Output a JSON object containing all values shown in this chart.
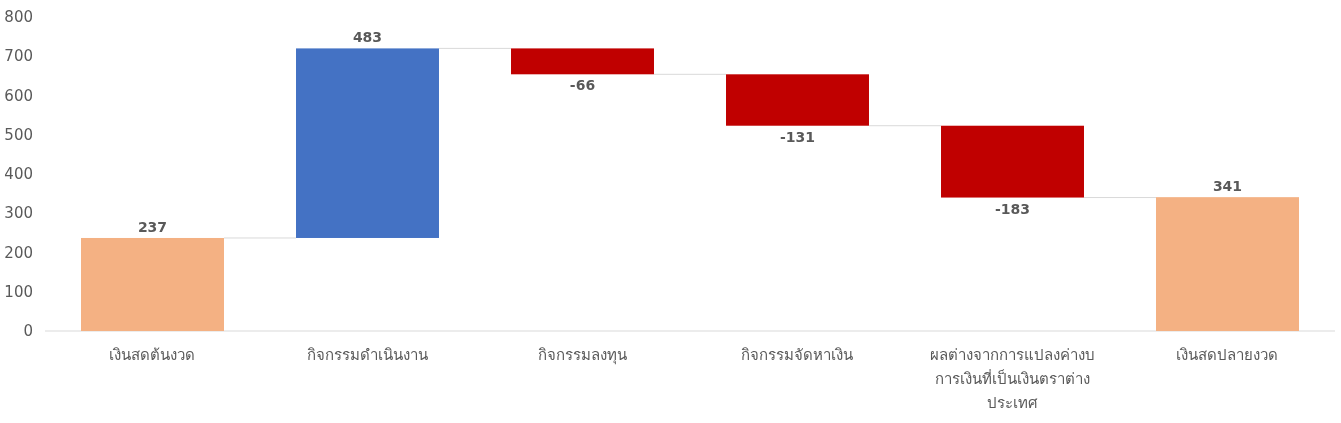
{
  "chart_data": {
    "type": "bar",
    "categories": [
      "เงินสดต้นงวด",
      "กิจกรรมดำเนินงาน",
      "กิจกรรมลงทุน",
      "กิจกรรมจัดหาเงิน",
      "ผลต่างจากการแปลงค่างบการเงินที่เป็นเงินตราต่างประเทศ",
      "เงินสดปลายงวด"
    ],
    "values": [
      237,
      483,
      -66,
      -131,
      -183,
      341
    ],
    "base": [
      0,
      237,
      720,
      654,
      523,
      0
    ],
    "colors": [
      "#f4b183",
      "#4472c4",
      "#c00000",
      "#c00000",
      "#c00000",
      "#f4b183"
    ],
    "ylim": [
      0,
      800
    ],
    "yticks": [
      0,
      100,
      200,
      300,
      400,
      500,
      600,
      700,
      800
    ],
    "data_labels": true
  }
}
